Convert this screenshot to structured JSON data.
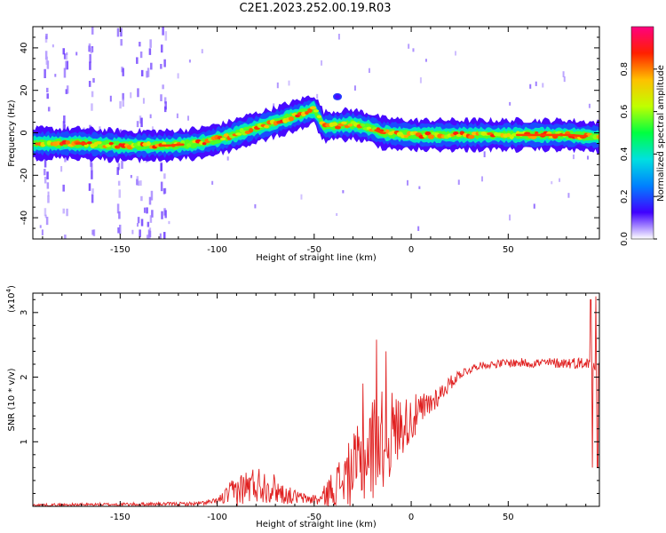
{
  "title": "C2E1.2023.252.00.19.R03",
  "chart_data": [
    {
      "type": "heatmap",
      "xlabel": "Height of straight line (km)",
      "ylabel": "Frequency (Hz)",
      "xlim": [
        -195,
        97
      ],
      "ylim": [
        -50,
        50
      ],
      "xticks": [
        -150,
        -100,
        -50,
        0,
        50
      ],
      "yticks": [
        -40,
        -20,
        0,
        20,
        40
      ],
      "colorbar": {
        "label": "Normalized spectral amplitude",
        "range": [
          0,
          1
        ],
        "ticks": [
          "0.0",
          "0.2",
          "0.4",
          "0.6",
          "0.8"
        ],
        "colors": [
          "#ffffff",
          "#4000ff",
          "#0080ff",
          "#00e0e0",
          "#00ff40",
          "#c0ff00",
          "#ffc000",
          "#ff2000",
          "#ff0080"
        ]
      },
      "ridge": [
        {
          "x": -195,
          "y": -5
        },
        {
          "x": -170,
          "y": -5
        },
        {
          "x": -150,
          "y": -6
        },
        {
          "x": -125,
          "y": -6
        },
        {
          "x": -110,
          "y": -5
        },
        {
          "x": -95,
          "y": -2
        },
        {
          "x": -85,
          "y": 1
        },
        {
          "x": -70,
          "y": 5
        },
        {
          "x": -60,
          "y": 8
        },
        {
          "x": -50,
          "y": 11
        },
        {
          "x": -45,
          "y": 3
        },
        {
          "x": -30,
          "y": 4
        },
        {
          "x": -20,
          "y": 2
        },
        {
          "x": -15,
          "y": 0
        },
        {
          "x": 0,
          "y": -1
        },
        {
          "x": 20,
          "y": -1
        },
        {
          "x": 50,
          "y": -1
        },
        {
          "x": 80,
          "y": -1
        },
        {
          "x": 97,
          "y": -2
        }
      ],
      "noise_streaks_x": [
        -188,
        -178,
        -165,
        -150,
        -140,
        -135,
        -128
      ]
    },
    {
      "type": "line",
      "xlabel": "Height of straight line (km)",
      "ylabel": "SNR (10 * v/v)",
      "y_scale_label": "(x10",
      "y_scale_exp": "4",
      "y_unit": 10000,
      "xlim": [
        -195,
        97
      ],
      "ylim": [
        0.0,
        3.3
      ],
      "xticks": [
        -150,
        -100,
        -50,
        0,
        50
      ],
      "yticks": [
        1,
        2,
        3
      ],
      "color": "#e02020",
      "profile": [
        {
          "x": -195,
          "y": 0.02,
          "a": 0.02
        },
        {
          "x": -110,
          "y": 0.04,
          "a": 0.03
        },
        {
          "x": -100,
          "y": 0.08,
          "a": 0.05
        },
        {
          "x": -90,
          "y": 0.25,
          "a": 0.25
        },
        {
          "x": -80,
          "y": 0.35,
          "a": 0.3
        },
        {
          "x": -72,
          "y": 0.3,
          "a": 0.25
        },
        {
          "x": -65,
          "y": 0.18,
          "a": 0.15
        },
        {
          "x": -55,
          "y": 0.12,
          "a": 0.08
        },
        {
          "x": -47,
          "y": 0.1,
          "a": 0.1
        },
        {
          "x": -40,
          "y": 0.3,
          "a": 0.3
        },
        {
          "x": -30,
          "y": 0.55,
          "a": 0.55
        },
        {
          "x": -20,
          "y": 0.9,
          "a": 0.85
        },
        {
          "x": -12,
          "y": 1.1,
          "a": 0.75
        },
        {
          "x": -5,
          "y": 1.25,
          "a": 0.45
        },
        {
          "x": 5,
          "y": 1.45,
          "a": 0.3
        },
        {
          "x": 15,
          "y": 1.75,
          "a": 0.15
        },
        {
          "x": 25,
          "y": 2.05,
          "a": 0.08
        },
        {
          "x": 35,
          "y": 2.18,
          "a": 0.05
        },
        {
          "x": 50,
          "y": 2.22,
          "a": 0.07
        },
        {
          "x": 70,
          "y": 2.22,
          "a": 0.08
        },
        {
          "x": 88,
          "y": 2.22,
          "a": 0.09
        },
        {
          "x": 97,
          "y": 2.2,
          "a": 0.1
        }
      ],
      "spikes": [
        {
          "x": -18,
          "y": 2.58
        },
        {
          "x": -13,
          "y": 2.4
        },
        {
          "x": -25,
          "y": 1.9
        },
        {
          "x": 92.5,
          "y": 3.2
        },
        {
          "x": 93.5,
          "y": 0.6
        },
        {
          "x": 95,
          "y": 3.25
        },
        {
          "x": 96,
          "y": 0.6
        }
      ]
    }
  ]
}
